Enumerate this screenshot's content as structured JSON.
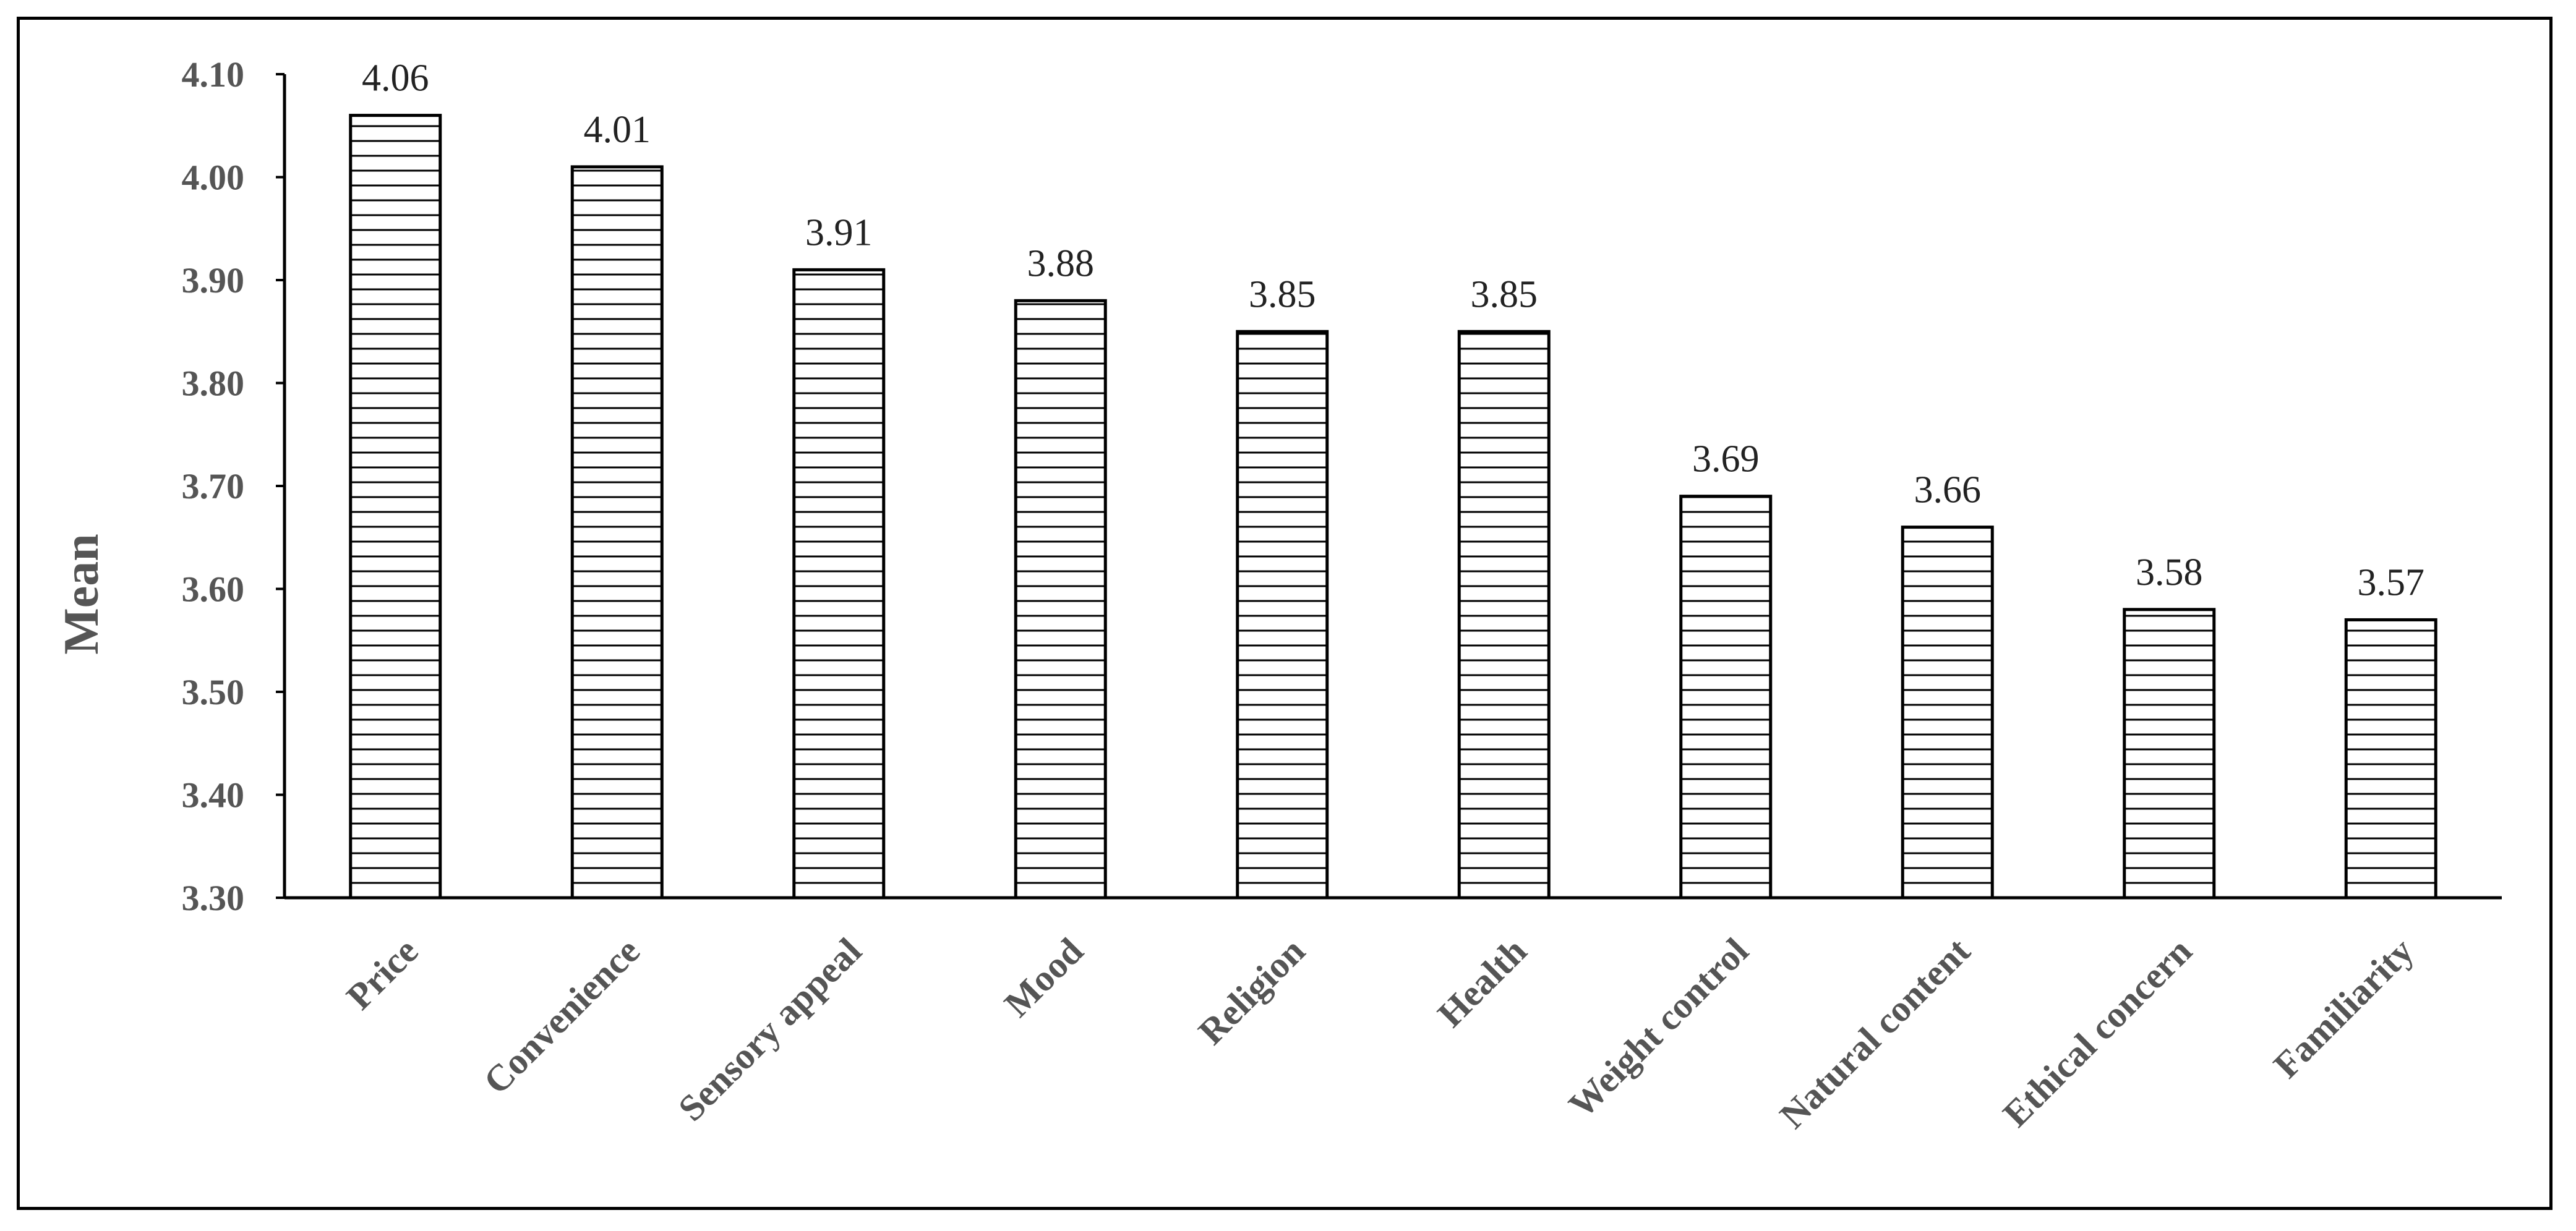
{
  "chart_data": {
    "type": "bar",
    "title": "",
    "xlabel": "",
    "ylabel": "Mean",
    "ylim": [
      3.3,
      4.1
    ],
    "yticks": [
      "3.30",
      "3.40",
      "3.50",
      "3.60",
      "3.70",
      "3.80",
      "3.90",
      "4.00",
      "4.10"
    ],
    "categories": [
      "Price",
      "Convenience",
      "Sensory appeal",
      "Mood",
      "Religion",
      "Health",
      "Weight control",
      "Natural content",
      "Ethical concern",
      "Familiarity"
    ],
    "values": [
      4.06,
      4.01,
      3.91,
      3.88,
      3.85,
      3.85,
      3.69,
      3.66,
      3.58,
      3.57
    ],
    "data_labels": [
      "4.06",
      "4.01",
      "3.91",
      "3.88",
      "3.85",
      "3.85",
      "3.69",
      "3.66",
      "3.58",
      "3.57"
    ],
    "grid": false,
    "legend": "none",
    "bar_pattern": "horizontal-lines",
    "colors": {
      "bar_fill": "#ffffff",
      "bar_stroke": "#000000",
      "axis_text": "#555555"
    }
  }
}
